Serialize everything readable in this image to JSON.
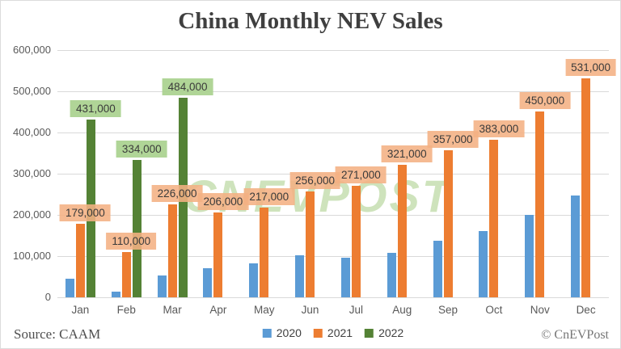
{
  "title": "China Monthly NEV Sales",
  "watermark": "CNEVPOST",
  "footer": {
    "source": "Source: CAAM",
    "copyright": "© CnEVPost"
  },
  "colors": {
    "series_2020": "#5B9BD5",
    "series_2021": "#ED7D31",
    "series_2022": "#548235",
    "label_bg_2021": "#F4B183",
    "label_bg_2022": "#A9D18E",
    "gridline": "#d9d9d9",
    "watermark_green": "#afd291",
    "title_text": "#3f3f3f",
    "axis_text": "#595959"
  },
  "chart_data": {
    "type": "bar",
    "title": "China Monthly NEV Sales",
    "xlabel": "",
    "ylabel": "",
    "ylim": [
      0,
      600000
    ],
    "grid": true,
    "legend_position": "bottom-center",
    "categories": [
      "Jan",
      "Feb",
      "Mar",
      "Apr",
      "May",
      "Jun",
      "Jul",
      "Aug",
      "Sep",
      "Oct",
      "Nov",
      "Dec"
    ],
    "yticks": [
      {
        "value": 0,
        "label": "0"
      },
      {
        "value": 100000,
        "label": "100,000"
      },
      {
        "value": 200000,
        "label": "200,000"
      },
      {
        "value": 300000,
        "label": "300,000"
      },
      {
        "value": 400000,
        "label": "400,000"
      },
      {
        "value": 500000,
        "label": "500,000"
      },
      {
        "value": 600000,
        "label": "600,000"
      }
    ],
    "series": [
      {
        "name": "2020",
        "color": "#5B9BD5",
        "show_labels": false,
        "values": [
          45000,
          13000,
          53000,
          70000,
          82000,
          102000,
          97000,
          107000,
          138000,
          160000,
          200000,
          248000
        ],
        "labels": [
          null,
          null,
          null,
          null,
          null,
          null,
          null,
          null,
          null,
          null,
          null,
          null
        ]
      },
      {
        "name": "2021",
        "color": "#ED7D31",
        "label_bg": "rgba(244,177,131,0.88)",
        "show_labels": true,
        "values": [
          179000,
          110000,
          226000,
          206000,
          217000,
          256000,
          271000,
          321000,
          357000,
          383000,
          450000,
          531000
        ],
        "labels": [
          "179,000",
          "110,000",
          "226,000",
          "206,000",
          "217,000",
          "256,000",
          "271,000",
          "321,000",
          "357,000",
          "383,000",
          "450,000",
          "531,000"
        ]
      },
      {
        "name": "2022",
        "color": "#548235",
        "label_bg": "rgba(169,209,142,0.92)",
        "show_labels": true,
        "values": [
          431000,
          334000,
          484000,
          null,
          null,
          null,
          null,
          null,
          null,
          null,
          null,
          null
        ],
        "labels": [
          "431,000",
          "334,000",
          "484,000",
          null,
          null,
          null,
          null,
          null,
          null,
          null,
          null,
          null
        ]
      }
    ]
  }
}
